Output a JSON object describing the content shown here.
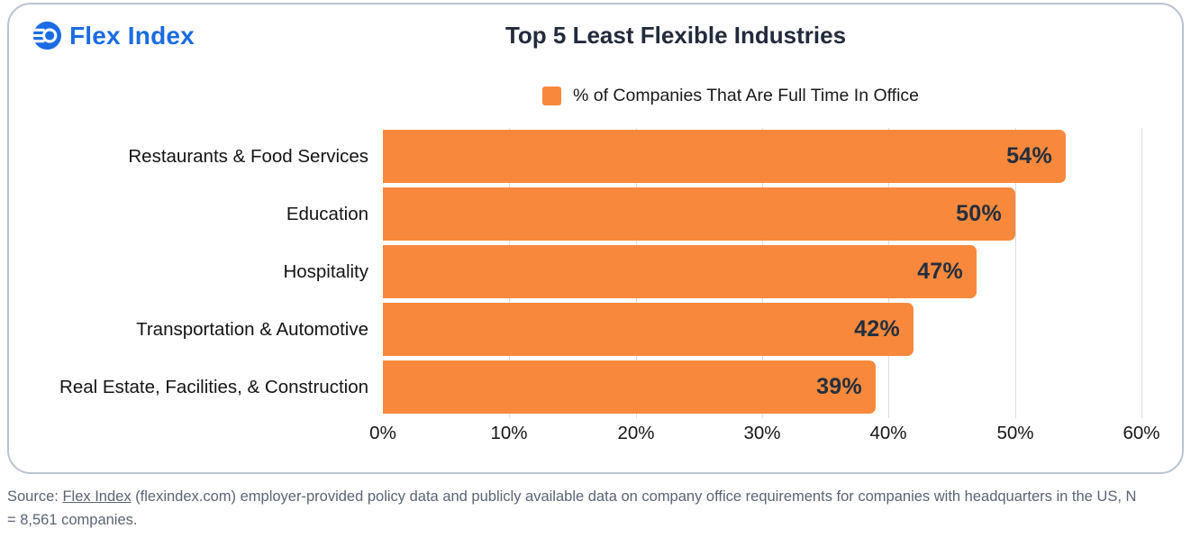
{
  "brand": {
    "name": "Flex Index"
  },
  "chart": {
    "title": "Top 5 Least Flexible Industries",
    "legend_label": "% of Companies That Are Full Time In Office"
  },
  "chart_data": {
    "type": "bar",
    "orientation": "horizontal",
    "title": "Top 5 Least Flexible Industries",
    "series_name": "% of Companies That Are Full Time In Office",
    "categories": [
      "Restaurants & Food Services",
      "Education",
      "Hospitality",
      "Transportation & Automotive",
      "Real Estate, Facilities, & Construction"
    ],
    "values": [
      54,
      50,
      47,
      42,
      39
    ],
    "value_labels": [
      "54%",
      "50%",
      "47%",
      "42%",
      "39%"
    ],
    "xlim": [
      0,
      60
    ],
    "x_tick_values": [
      0,
      10,
      20,
      30,
      40,
      50,
      60
    ],
    "x_tick_labels": [
      "0%",
      "10%",
      "20%",
      "30%",
      "40%",
      "50%",
      "60%"
    ],
    "grid": true,
    "gridline_tick_values": [
      10,
      20,
      30,
      40,
      50,
      60
    ],
    "legend_position": "top",
    "bar_color": "#f8893c"
  },
  "colors": {
    "bar_orange": "#f8893c",
    "title_navy": "#222b3c",
    "value_navy": "#242e3f",
    "logo_blue": "#1b6ce2",
    "axis_text": "#141414",
    "source_gray": "#5a6474",
    "card_border": "#b9c3d0",
    "gridline": "#dcdee1"
  },
  "source": {
    "prefix": "Source: ",
    "link_text": "Flex Index",
    "after_link": " (flexindex.com) employer-provided policy data and publicly available data on company office requirements for companies with headquarters in the US, N",
    "line2": "= 8,561 companies."
  }
}
